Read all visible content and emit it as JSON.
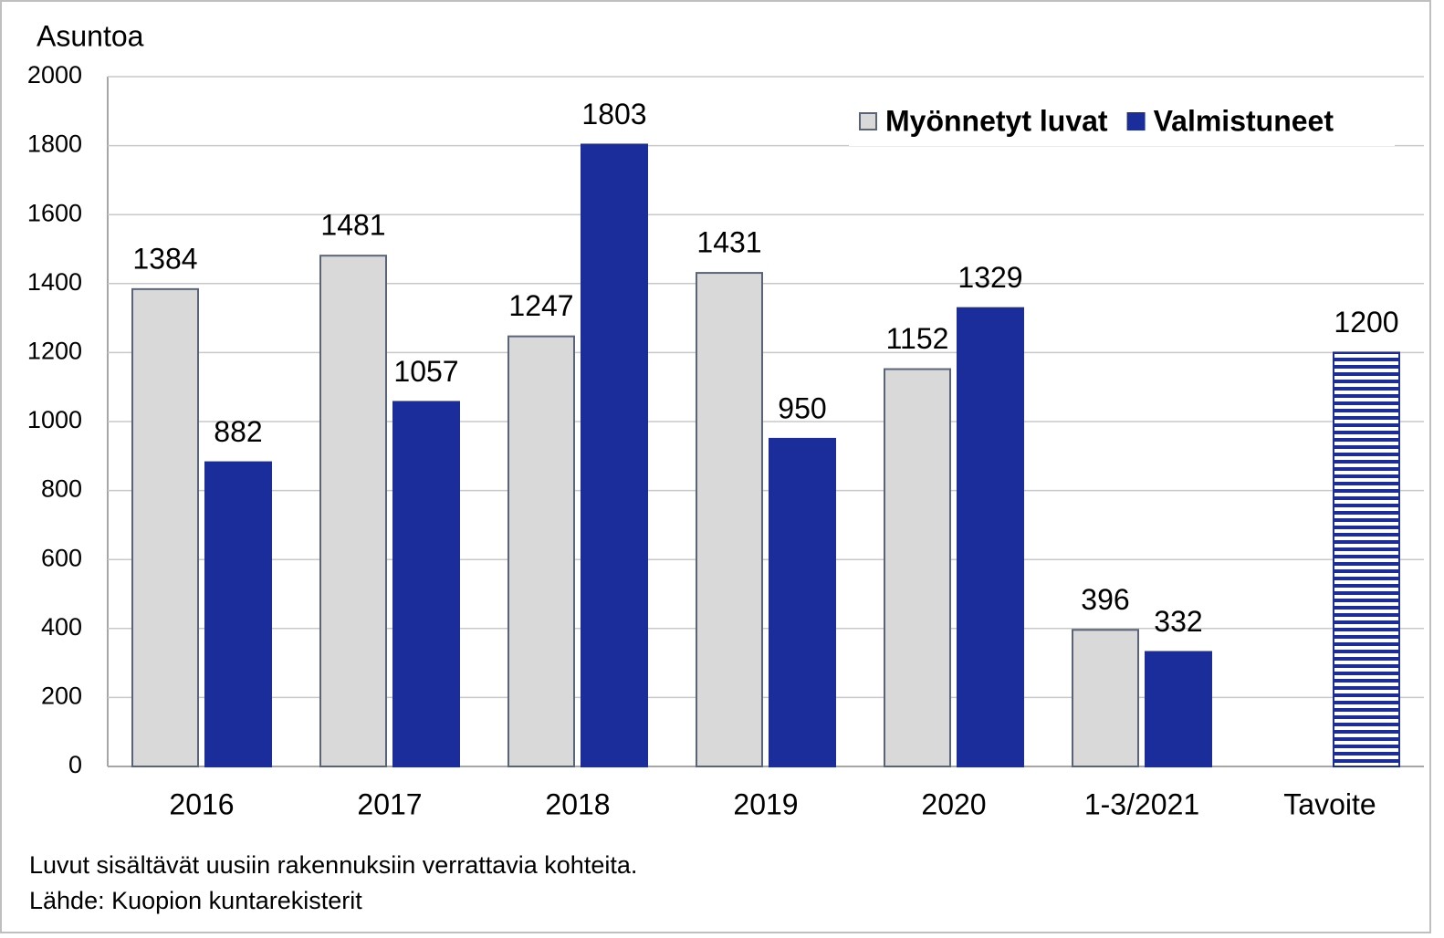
{
  "chart_data": {
    "type": "bar",
    "y_axis_label": "Asuntoa",
    "categories": [
      "2016",
      "2017",
      "2018",
      "2019",
      "2020",
      "1-3/2021",
      "Tavoite"
    ],
    "series": [
      {
        "name": "Myönnetyt luvat",
        "color": "#d9d9d9",
        "values": [
          1384,
          1481,
          1247,
          1431,
          1152,
          396,
          null
        ]
      },
      {
        "name": "Valmistuneet",
        "color": "#1b2d9b",
        "values": [
          882,
          1057,
          1803,
          950,
          1329,
          332,
          1200
        ],
        "striped": [
          false,
          false,
          false,
          false,
          false,
          false,
          true
        ]
      }
    ],
    "ylim": [
      0,
      2000
    ],
    "yticks": [
      0,
      200,
      400,
      600,
      800,
      1000,
      1200,
      1400,
      1600,
      1800,
      2000
    ],
    "grid": true,
    "legend": "top-right",
    "notes": [
      "Luvut sisältävät uusiin rakennuksiin verrattavia kohteita.",
      "Lähde: Kuopion kuntarekisterit"
    ]
  }
}
